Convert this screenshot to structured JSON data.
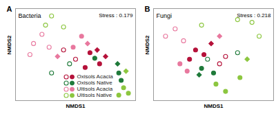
{
  "chart_data": [
    {
      "type": "scatter",
      "panel": "A",
      "title": "Bacteria",
      "annotations": [
        "Stress : 0.179"
      ],
      "x_label": "NMDS1",
      "y_label": "NMDS2",
      "xlim": [
        0,
        100
      ],
      "ylim": [
        0,
        100
      ],
      "xticks": [],
      "yticks": [],
      "tick_labels": false,
      "legend": "lower right",
      "series": [
        {
          "name": "Oxisols Acacia",
          "color": "#b5123a",
          "marker": "circle",
          "x": [
            62,
            70,
            58
          ],
          "values": [
            52,
            40,
            36
          ]
        },
        {
          "name": "Oxisols Acacia",
          "color": "#b5123a",
          "marker": "circle-open",
          "x": [
            40,
            50
          ],
          "values": [
            55,
            45
          ]
        },
        {
          "name": "Oxisols Acacia",
          "color": "#b5123a",
          "marker": "diamond",
          "x": [
            68,
            75
          ],
          "values": [
            55,
            48
          ]
        },
        {
          "name": "Oxisols Native",
          "color": "#1f7a3a",
          "marker": "circle",
          "x": [
            86,
            88,
            66
          ],
          "values": [
            30,
            22,
            46
          ]
        },
        {
          "name": "Oxisols Native",
          "color": "#1f7a3a",
          "marker": "circle-open",
          "x": [
            45,
            30
          ],
          "values": [
            40,
            30
          ]
        },
        {
          "name": "Oxisols Native",
          "color": "#1f7a3a",
          "marker": "diamond",
          "x": [
            85
          ],
          "values": [
            40
          ]
        },
        {
          "name": "Ultisols Acacia",
          "color": "#e8789e",
          "marker": "circle",
          "x": [
            55,
            48
          ],
          "values": [
            70,
            58
          ]
        },
        {
          "name": "Ultisols Acacia",
          "color": "#e8789e",
          "marker": "circle-open",
          "x": [
            15,
            22,
            28,
            12
          ],
          "values": [
            62,
            72,
            58,
            50
          ]
        },
        {
          "name": "Ultisols Acacia",
          "color": "#e8789e",
          "marker": "diamond",
          "x": [
            60,
            35
          ],
          "values": [
            62,
            48
          ]
        },
        {
          "name": "Ultisols Native",
          "color": "#8cc63f",
          "marker": "circle",
          "x": [
            90,
            94,
            86
          ],
          "values": [
            14,
            8,
            6
          ]
        },
        {
          "name": "Ultisols Native",
          "color": "#8cc63f",
          "marker": "circle-open",
          "x": [
            30,
            40,
            25
          ],
          "values": [
            92,
            80,
            82
          ]
        },
        {
          "name": "Ultisols Native",
          "color": "#8cc63f",
          "marker": "diamond",
          "x": [
            92
          ],
          "values": [
            32
          ]
        }
      ]
    },
    {
      "type": "scatter",
      "panel": "B",
      "title": "Fungi",
      "annotations": [
        "Stress : 0.218"
      ],
      "x_label": "NMDS1",
      "y_label": "NMDS2",
      "xlim": [
        0,
        100
      ],
      "ylim": [
        0,
        100
      ],
      "xticks": [],
      "yticks": [],
      "tick_labels": false,
      "series": [
        {
          "name": "Oxisols Acacia",
          "color": "#b5123a",
          "marker": "circle",
          "x": [
            35,
            42,
            30
          ],
          "values": [
            55,
            50,
            45
          ]
        },
        {
          "name": "Oxisols Acacia",
          "color": "#b5123a",
          "marker": "circle-open",
          "x": [
            60,
            55
          ],
          "values": [
            48,
            40
          ]
        },
        {
          "name": "Oxisols Acacia",
          "color": "#b5123a",
          "marker": "diamond",
          "x": [
            48
          ],
          "values": [
            62
          ]
        },
        {
          "name": "Oxisols Native",
          "color": "#1f7a3a",
          "marker": "circle",
          "x": [
            50,
            40
          ],
          "values": [
            30,
            35
          ]
        },
        {
          "name": "Oxisols Native",
          "color": "#1f7a3a",
          "marker": "circle-open",
          "x": [
            70,
            45
          ],
          "values": [
            52,
            45
          ]
        },
        {
          "name": "Oxisols Native",
          "color": "#1f7a3a",
          "marker": "diamond",
          "x": [
            38
          ],
          "values": [
            28
          ]
        },
        {
          "name": "Ultisols Acacia",
          "color": "#e8789e",
          "marker": "circle",
          "x": [
            22,
            28
          ],
          "values": [
            40,
            32
          ]
        },
        {
          "name": "Ultisols Acacia",
          "color": "#e8789e",
          "marker": "circle-open",
          "x": [
            10,
            18,
            25
          ],
          "values": [
            70,
            78,
            65
          ]
        },
        {
          "name": "Ultisols Acacia",
          "color": "#e8789e",
          "marker": "diamond",
          "x": [
            55
          ],
          "values": [
            70
          ]
        },
        {
          "name": "Ultisols Native",
          "color": "#8cc63f",
          "marker": "circle",
          "x": [
            60,
            52,
            72
          ],
          "values": [
            10,
            18,
            25
          ]
        },
        {
          "name": "Ultisols Native",
          "color": "#8cc63f",
          "marker": "circle-open",
          "x": [
            82,
            70,
            88,
            40
          ],
          "values": [
            85,
            88,
            70,
            82
          ]
        },
        {
          "name": "Ultisols Native",
          "color": "#8cc63f",
          "marker": "diamond",
          "x": [
            78
          ],
          "values": [
            45
          ]
        }
      ]
    }
  ]
}
